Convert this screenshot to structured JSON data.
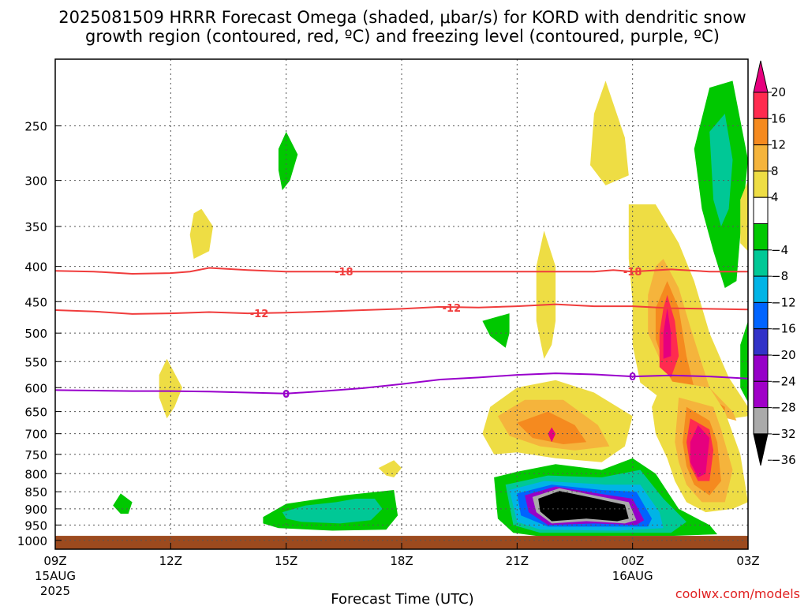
{
  "chart_data": {
    "type": "heatmap",
    "title_line1": "2025081509 HRRR Forecast Omega (shaded, μbar/s) for KORD with dendritic snow",
    "title_line2": "growth region (contoured, red, ºC) and freezing level (contoured, purple, ºC)",
    "xlabel": "Forecast Time (UTC)",
    "ylabel": "",
    "credit": "coolwx.com/models",
    "x_ticks": [
      {
        "h": 0,
        "label": "09Z",
        "sub1": "15AUG",
        "sub2": "2025"
      },
      {
        "h": 3,
        "label": "12Z",
        "sub1": "",
        "sub2": ""
      },
      {
        "h": 6,
        "label": "15Z",
        "sub1": "",
        "sub2": ""
      },
      {
        "h": 9,
        "label": "18Z",
        "sub1": "",
        "sub2": ""
      },
      {
        "h": 12,
        "label": "21Z",
        "sub1": "",
        "sub2": ""
      },
      {
        "h": 15,
        "label": "00Z",
        "sub1": "16AUG",
        "sub2": ""
      },
      {
        "h": 18,
        "label": "03Z",
        "sub1": "",
        "sub2": ""
      }
    ],
    "y_ticks": [
      250,
      300,
      350,
      400,
      450,
      500,
      550,
      600,
      650,
      700,
      750,
      800,
      850,
      900,
      950,
      1000
    ],
    "y_axis": "pressure (hPa), log scale, inverted",
    "xlim": [
      0,
      18
    ],
    "ylim": [
      1030,
      200
    ],
    "grid": true,
    "colorbar": {
      "ticks": [
        20,
        16,
        12,
        8,
        4,
        -4,
        -8,
        -12,
        -16,
        -20,
        -24,
        -28,
        -32,
        -36
      ],
      "bins": [
        {
          "range": "> 20",
          "color": "#e6007e"
        },
        {
          "range": "16 to 20",
          "color": "#ff2b4f"
        },
        {
          "range": "12 to 16",
          "color": "#f58a1f"
        },
        {
          "range": "8 to 12",
          "color": "#f5b43c"
        },
        {
          "range": "4 to 8",
          "color": "#eedd44"
        },
        {
          "range": "-4 to 4",
          "color": "#ffffff"
        },
        {
          "range": "-8 to -4",
          "color": "#00c800"
        },
        {
          "range": "-12 to -8",
          "color": "#00c896"
        },
        {
          "range": "-16 to -12",
          "color": "#00b4e6"
        },
        {
          "range": "-20 to -16",
          "color": "#0064ff"
        },
        {
          "range": "-24 to -20",
          "color": "#3232c8"
        },
        {
          "range": "-28 to -24",
          "color": "#9600c8"
        },
        {
          "range": "-32 to -28",
          "color": "#a000c8"
        },
        {
          "range": "-36 to -32",
          "color": "#aaaaaa"
        },
        {
          "range": "< -36",
          "color": "#000000"
        }
      ]
    },
    "contours": [
      {
        "level": -18,
        "label": "-18",
        "color": "#f03c3c",
        "points": [
          [
            0,
            406
          ],
          [
            1,
            407
          ],
          [
            2,
            410
          ],
          [
            3,
            409
          ],
          [
            3.5,
            407
          ],
          [
            4,
            402
          ],
          [
            5,
            405
          ],
          [
            6,
            407
          ],
          [
            8,
            407
          ],
          [
            10,
            407
          ],
          [
            12,
            407
          ],
          [
            14,
            407
          ],
          [
            14.5,
            405
          ],
          [
            15,
            407
          ],
          [
            16,
            404
          ],
          [
            17,
            407
          ],
          [
            18,
            407
          ]
        ],
        "label_at": [
          [
            7.5,
            407
          ],
          [
            15,
            407
          ]
        ]
      },
      {
        "level": -12,
        "label": "-12",
        "color": "#f03c3c",
        "points": [
          [
            0,
            463
          ],
          [
            1,
            465
          ],
          [
            2,
            469
          ],
          [
            3,
            468
          ],
          [
            4,
            466
          ],
          [
            5,
            468
          ],
          [
            6,
            467
          ],
          [
            7,
            465
          ],
          [
            8,
            463
          ],
          [
            9,
            461
          ],
          [
            10,
            458
          ],
          [
            11,
            459
          ],
          [
            12,
            457
          ],
          [
            13,
            454
          ],
          [
            14,
            457
          ],
          [
            15,
            457
          ],
          [
            16,
            460
          ],
          [
            18,
            462
          ]
        ],
        "label_at": [
          [
            5.3,
            468
          ],
          [
            10.3,
            459
          ]
        ]
      },
      {
        "level": 0,
        "label": "0",
        "color": "#9900cc",
        "points": [
          [
            0,
            605
          ],
          [
            1,
            606
          ],
          [
            2,
            607
          ],
          [
            3,
            607
          ],
          [
            4,
            608
          ],
          [
            5,
            610
          ],
          [
            6,
            612
          ],
          [
            7,
            607
          ],
          [
            8,
            601
          ],
          [
            9,
            593
          ],
          [
            10,
            584
          ],
          [
            11,
            580
          ],
          [
            12,
            575
          ],
          [
            13,
            572
          ],
          [
            14,
            574
          ],
          [
            15,
            578
          ],
          [
            16,
            576
          ],
          [
            17,
            578
          ],
          [
            18,
            582
          ]
        ],
        "label_at": [
          [
            6,
            612
          ],
          [
            15,
            578
          ]
        ]
      }
    ],
    "freezing_level_hpa_at_00Z": 580,
    "surface_band_hpa": [
      985,
      1030
    ]
  }
}
